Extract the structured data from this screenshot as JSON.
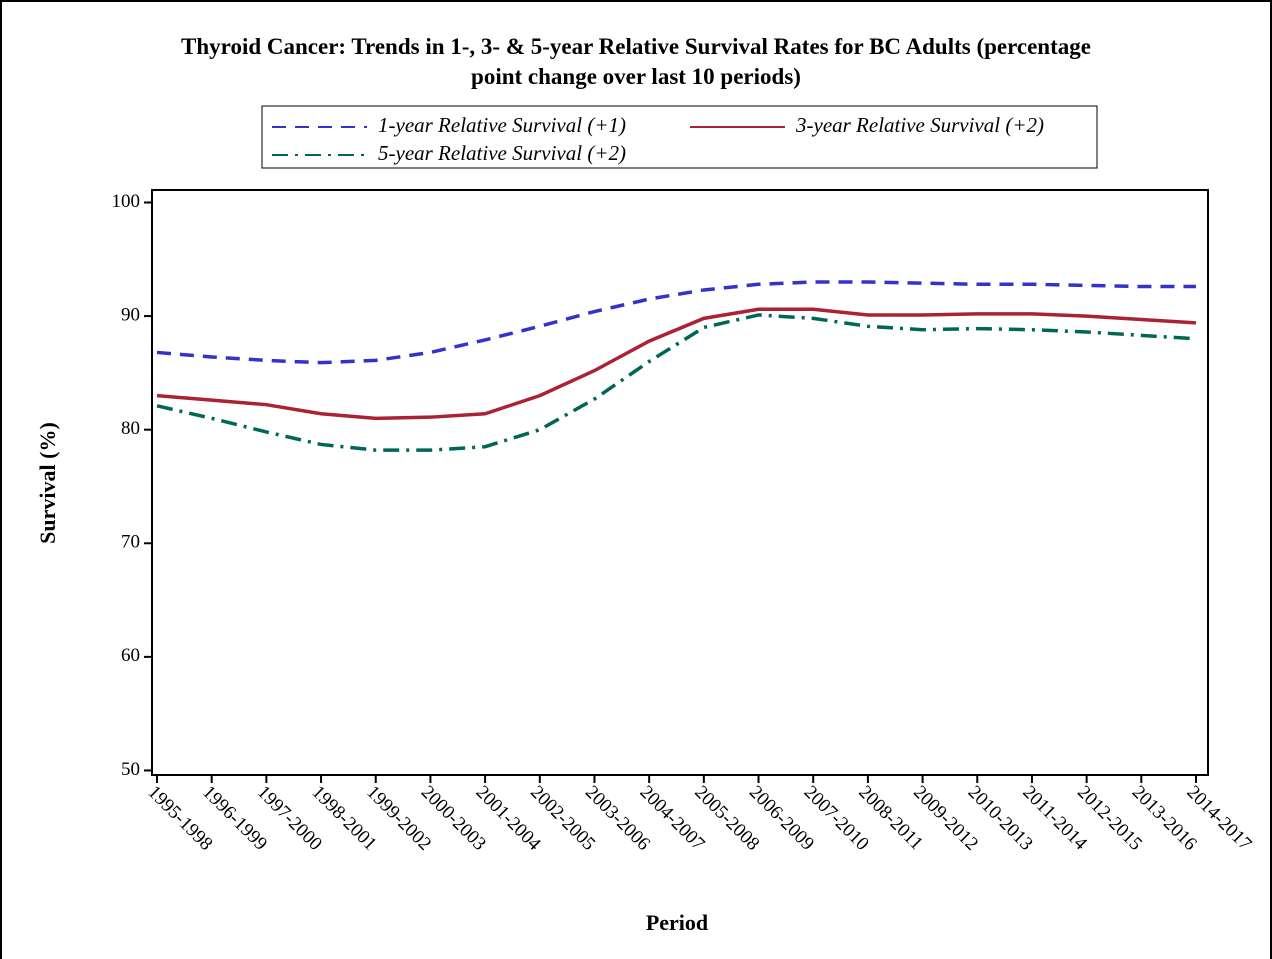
{
  "chart_data": {
    "type": "line",
    "title": [
      "Thyroid Cancer: Trends in 1-, 3- & 5-year Relative Survival Rates for BC Adults (percentage",
      "point change over last 10 periods)"
    ],
    "x_label": "Period",
    "y_label": "Survival (%)",
    "categories": [
      "1995-1998",
      "1996-1999",
      "1997-2000",
      "1998-2001",
      "1999-2002",
      "2000-2003",
      "2001-2004",
      "2002-2005",
      "2003-2006",
      "2004-2007",
      "2005-2008",
      "2006-2009",
      "2007-2010",
      "2008-2011",
      "2009-2012",
      "2010-2013",
      "2011-2014",
      "2012-2015",
      "2013-2016",
      "2014-2017"
    ],
    "series": [
      {
        "name": "1-year Relative Survival (+1)",
        "color": "#3333cc",
        "dash": "dashed",
        "values": [
          86.8,
          86.4,
          86.1,
          85.9,
          86.1,
          86.8,
          87.9,
          89.1,
          90.4,
          91.5,
          92.3,
          92.8,
          93.0,
          93.0,
          92.9,
          92.8,
          92.8,
          92.7,
          92.6,
          92.6
        ]
      },
      {
        "name": "3-year Relative Survival (+2)",
        "color": "#aa2233",
        "dash": "solid",
        "values": [
          83.0,
          82.6,
          82.2,
          81.4,
          81.0,
          81.1,
          81.4,
          83.0,
          85.2,
          87.8,
          89.8,
          90.6,
          90.6,
          90.1,
          90.1,
          90.2,
          90.2,
          90.0,
          89.7,
          89.4
        ]
      },
      {
        "name": "5-year Relative Survival (+2)",
        "color": "#006655",
        "dash": "dashdot",
        "values": [
          82.1,
          81.0,
          79.8,
          78.7,
          78.2,
          78.2,
          78.5,
          80.0,
          82.7,
          86.0,
          89.0,
          90.1,
          89.8,
          89.1,
          88.8,
          88.9,
          88.8,
          88.6,
          88.3,
          88.0
        ]
      }
    ],
    "ylim": [
      49.6,
      101.1
    ],
    "yticks": [
      50,
      60,
      70,
      80,
      90,
      100
    ],
    "grid": false
  }
}
